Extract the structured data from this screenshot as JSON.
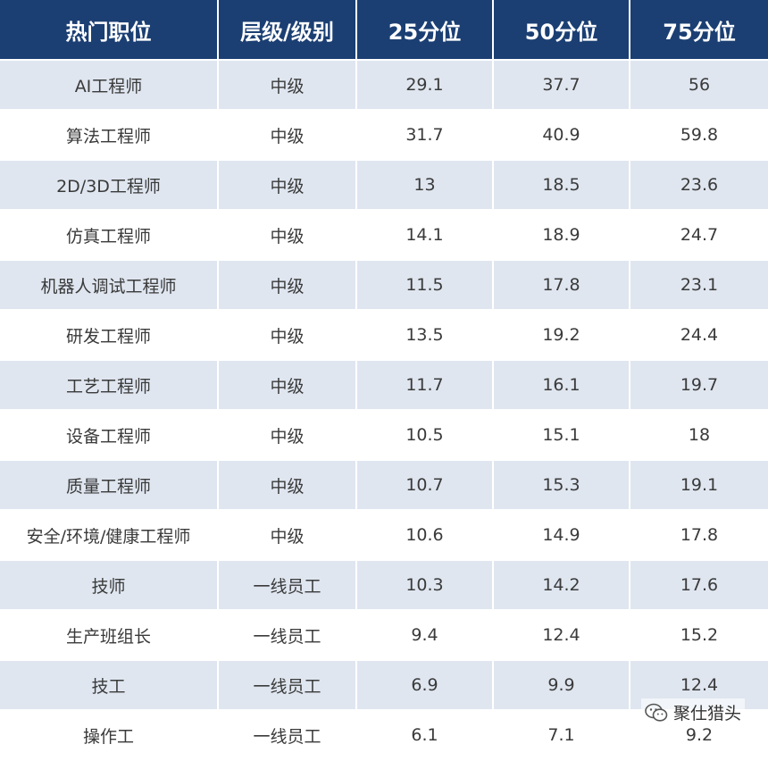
{
  "table": {
    "headers": [
      "热门职位",
      "层级/级别",
      "25分位",
      "50分位",
      "75分位"
    ],
    "rows": [
      [
        "AI工程师",
        "中级",
        "29.1",
        "37.7",
        "56"
      ],
      [
        "算法工程师",
        "中级",
        "31.7",
        "40.9",
        "59.8"
      ],
      [
        "2D/3D工程师",
        "中级",
        "13",
        "18.5",
        "23.6"
      ],
      [
        "仿真工程师",
        "中级",
        "14.1",
        "18.9",
        "24.7"
      ],
      [
        "机器人调试工程师",
        "中级",
        "11.5",
        "17.8",
        "23.1"
      ],
      [
        "研发工程师",
        "中级",
        "13.5",
        "19.2",
        "24.4"
      ],
      [
        "工艺工程师",
        "中级",
        "11.7",
        "16.1",
        "19.7"
      ],
      [
        "设备工程师",
        "中级",
        "10.5",
        "15.1",
        "18"
      ],
      [
        "质量工程师",
        "中级",
        "10.7",
        "15.3",
        "19.1"
      ],
      [
        "安全/环境/健康工程师",
        "中级",
        "10.6",
        "14.9",
        "17.8"
      ],
      [
        "技师",
        "一线员工",
        "10.3",
        "14.2",
        "17.6"
      ],
      [
        "生产班组长",
        "一线员工",
        "9.4",
        "12.4",
        "15.2"
      ],
      [
        "技工",
        "一线员工",
        "6.9",
        "9.9",
        "12.4"
      ],
      [
        "操作工",
        "一线员工",
        "6.1",
        "7.1",
        "9.2"
      ]
    ]
  },
  "watermark": {
    "icon": "wechat-icon",
    "label": "聚仕猎头"
  },
  "colors": {
    "header_bg": "#1b3f73",
    "row_alt_bg": "#dfe6f0",
    "text": "#3a3a3a"
  }
}
